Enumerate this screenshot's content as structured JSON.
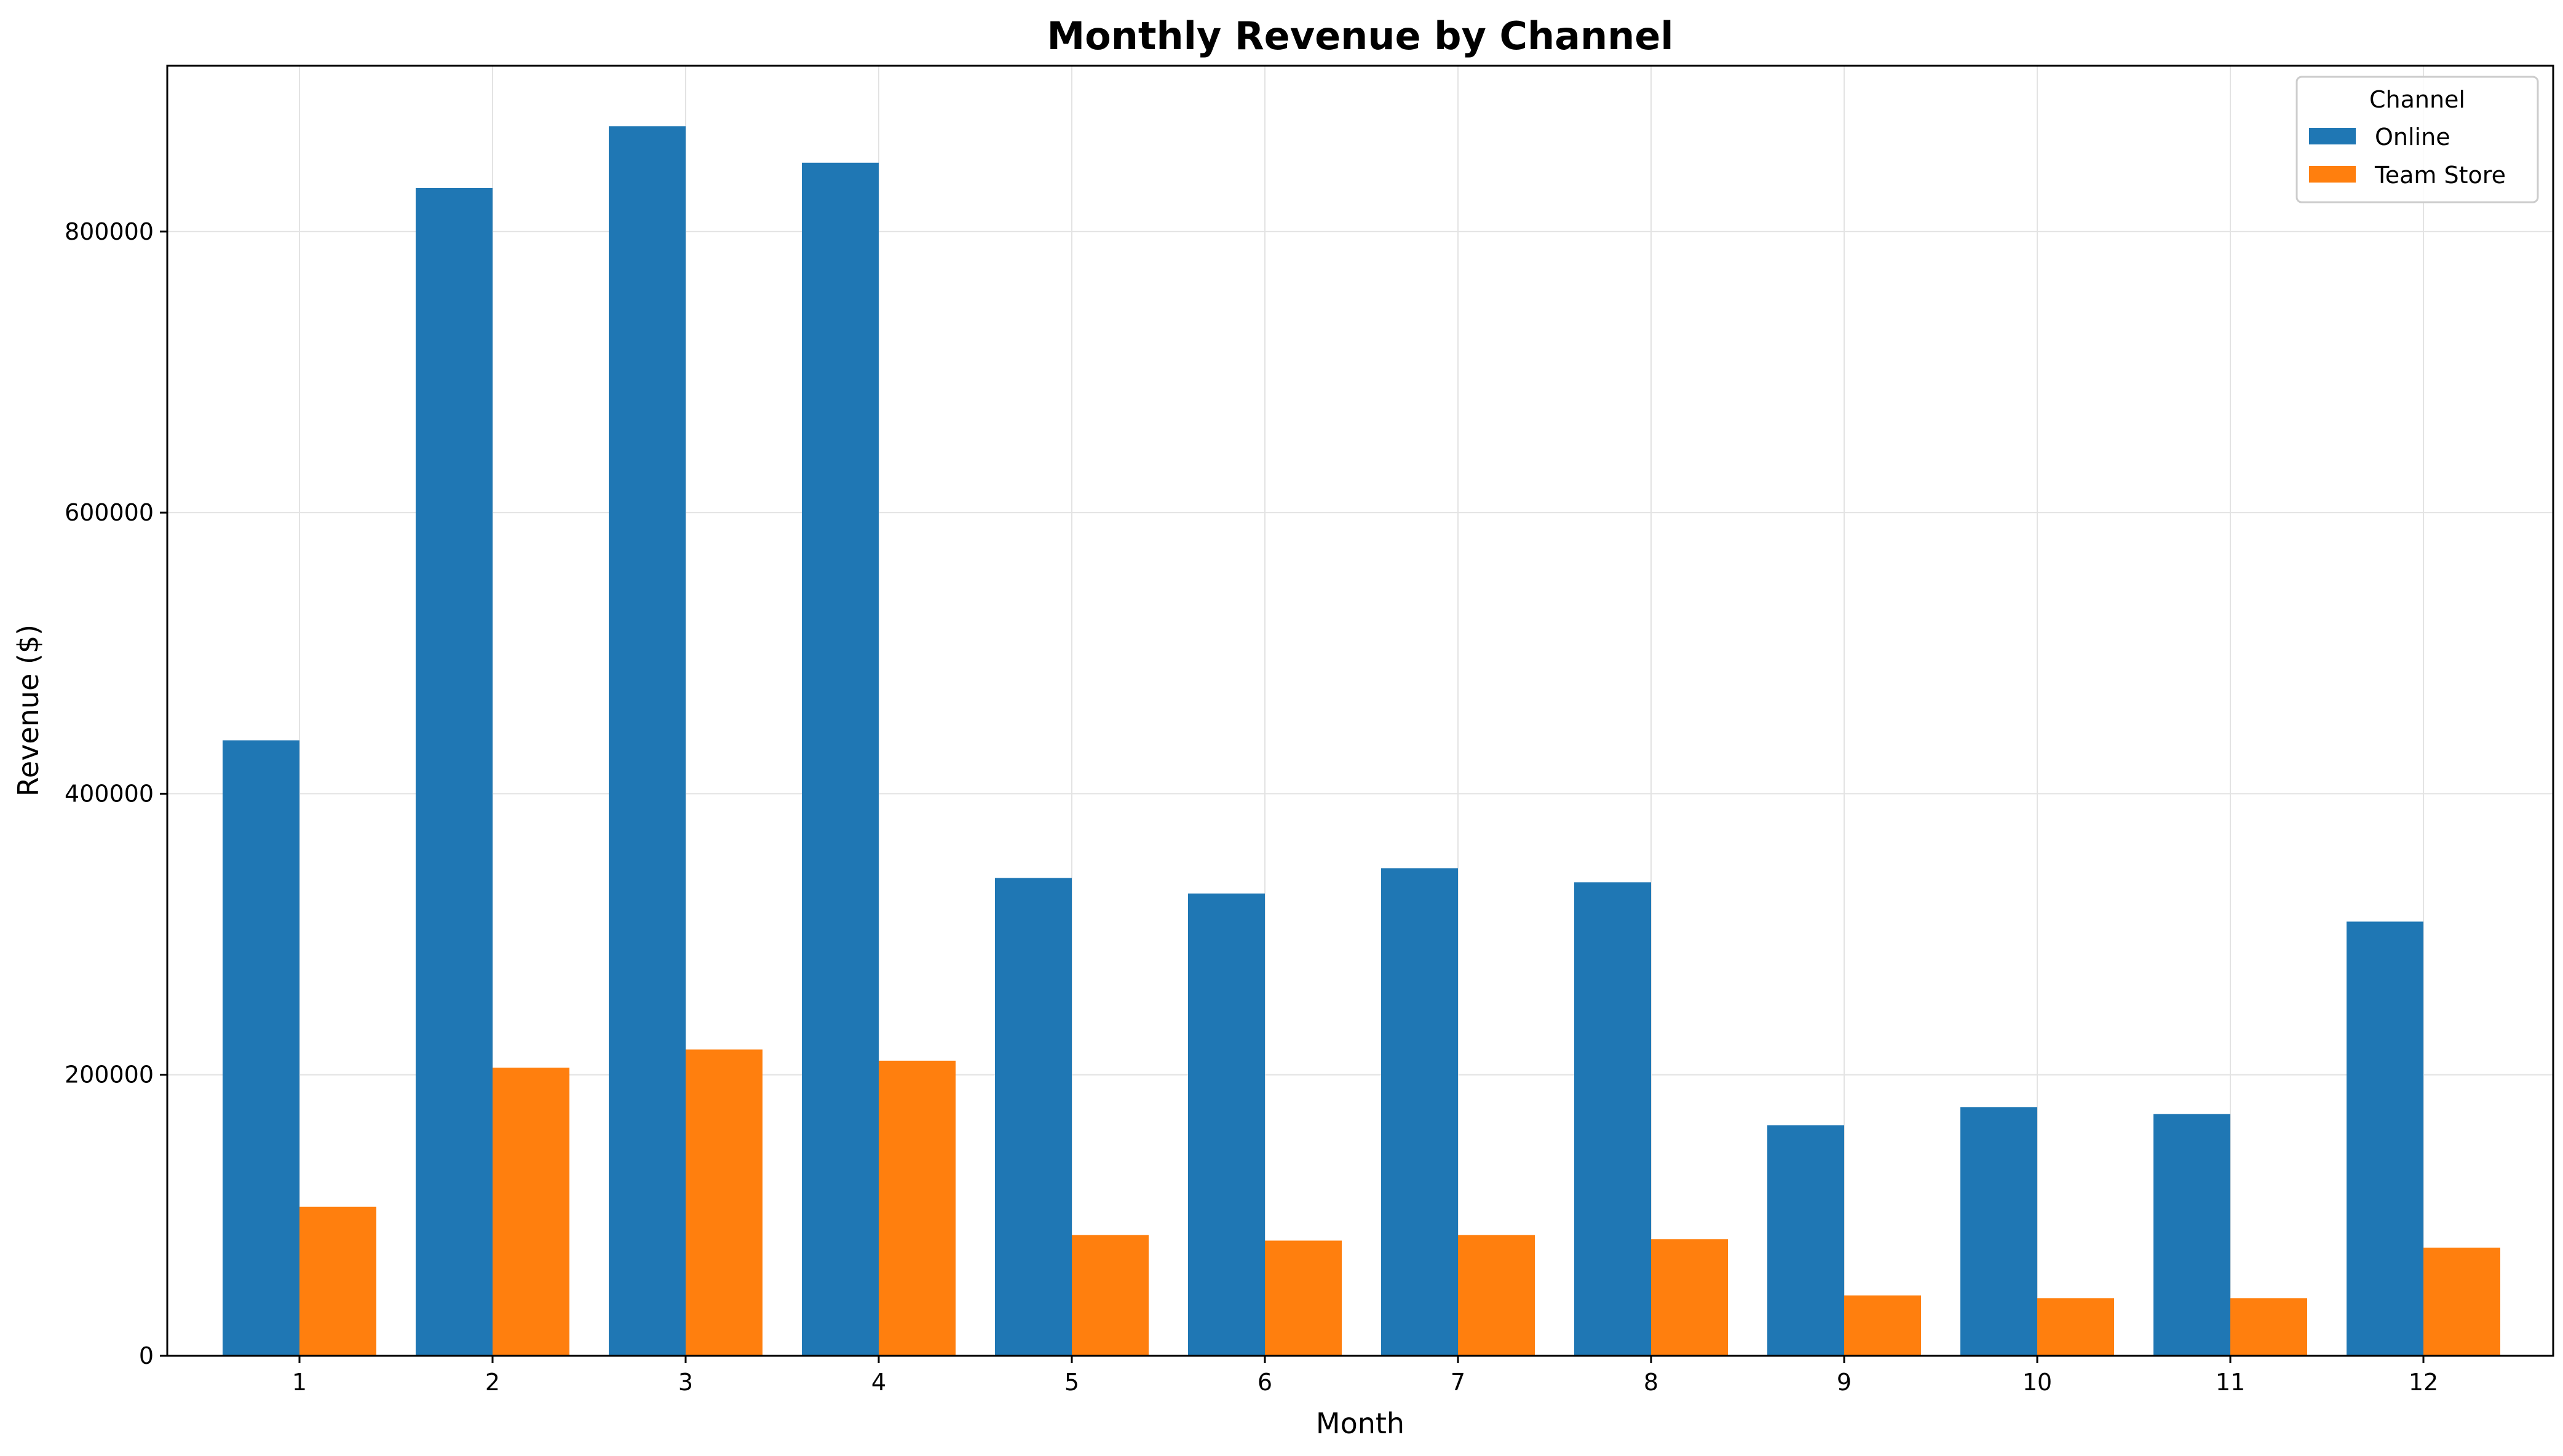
{
  "chart_data": {
    "type": "bar",
    "title": "Monthly Revenue by Channel",
    "xlabel": "Month",
    "ylabel": "Revenue ($)",
    "categories": [
      "1",
      "2",
      "3",
      "4",
      "5",
      "6",
      "7",
      "8",
      "9",
      "10",
      "11",
      "12"
    ],
    "series": [
      {
        "name": "Online",
        "color": "#1f77b4",
        "values": [
          438000,
          831000,
          875000,
          849000,
          340000,
          329000,
          347000,
          337000,
          164000,
          177000,
          172000,
          309000
        ]
      },
      {
        "name": "Team Store",
        "color": "#ff7f0e",
        "values": [
          106000,
          205000,
          218000,
          210000,
          86000,
          82000,
          86000,
          83000,
          43000,
          41000,
          41000,
          77000
        ]
      }
    ],
    "ylim": [
      0,
      918000
    ],
    "yticks": [
      0,
      200000,
      400000,
      600000,
      800000
    ],
    "yticks_labels": [
      "0",
      "200000",
      "400000",
      "600000",
      "800000"
    ],
    "grid": true,
    "legend": {
      "title": "Channel",
      "placement": "top-right"
    }
  }
}
